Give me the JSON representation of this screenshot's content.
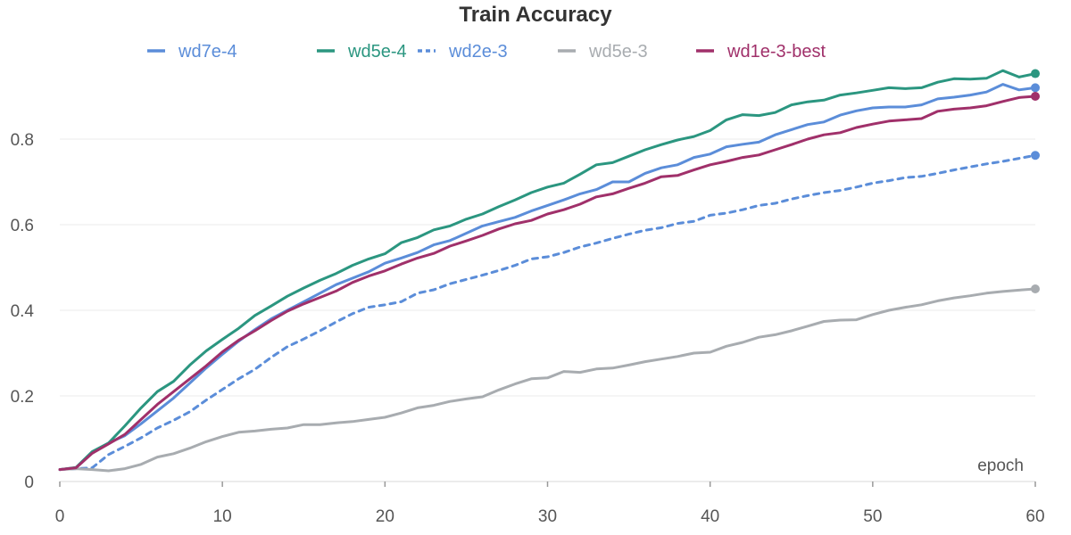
{
  "chart_data": {
    "type": "line",
    "title": "Train Accuracy",
    "xlabel": "epoch",
    "ylabel": "",
    "xlim": [
      0,
      60
    ],
    "ylim": [
      0,
      1.0
    ],
    "x_ticks": [
      0,
      10,
      20,
      30,
      40,
      50,
      60
    ],
    "y_ticks": [
      0,
      0.2,
      0.4,
      0.6,
      0.8
    ],
    "x_tick_labels": [
      "0",
      "10",
      "20",
      "30",
      "40",
      "50",
      "60"
    ],
    "y_tick_labels": [
      "0",
      "0.2",
      "0.4",
      "0.6",
      "0.8"
    ],
    "grid": true,
    "legend_position": "top",
    "series": [
      {
        "name": "wd7e-4",
        "color": "#5b8dd9",
        "dash": "solid",
        "values": [
          0.028,
          0.032,
          0.068,
          0.09,
          0.107,
          0.135,
          0.165,
          0.195,
          0.23,
          0.265,
          0.297,
          0.328,
          0.355,
          0.38,
          0.4,
          0.42,
          0.44,
          0.46,
          0.475,
          0.49,
          0.51,
          0.522,
          0.535,
          0.553,
          0.563,
          0.58,
          0.597,
          0.607,
          0.617,
          0.632,
          0.645,
          0.658,
          0.672,
          0.682,
          0.7,
          0.7,
          0.72,
          0.733,
          0.74,
          0.757,
          0.765,
          0.782,
          0.788,
          0.793,
          0.81,
          0.822,
          0.834,
          0.84,
          0.856,
          0.866,
          0.873,
          0.875,
          0.875,
          0.88,
          0.894,
          0.898,
          0.903,
          0.91,
          0.928,
          0.915,
          0.92
        ]
      },
      {
        "name": "wd5e-4",
        "color": "#2b9680",
        "dash": "solid",
        "values": [
          0.028,
          0.033,
          0.07,
          0.09,
          0.13,
          0.172,
          0.21,
          0.234,
          0.272,
          0.305,
          0.332,
          0.358,
          0.388,
          0.41,
          0.433,
          0.452,
          0.47,
          0.486,
          0.505,
          0.52,
          0.532,
          0.558,
          0.57,
          0.588,
          0.597,
          0.613,
          0.625,
          0.642,
          0.658,
          0.675,
          0.688,
          0.697,
          0.718,
          0.74,
          0.745,
          0.76,
          0.775,
          0.787,
          0.798,
          0.806,
          0.82,
          0.845,
          0.857,
          0.855,
          0.862,
          0.88,
          0.887,
          0.891,
          0.903,
          0.908,
          0.914,
          0.92,
          0.918,
          0.92,
          0.933,
          0.941,
          0.94,
          0.942,
          0.96,
          0.945,
          0.953
        ]
      },
      {
        "name": "wd2e-3",
        "color": "#5b8dd9",
        "dash": "dashed",
        "values": [
          0.028,
          0.03,
          0.032,
          0.063,
          0.082,
          0.102,
          0.125,
          0.143,
          0.163,
          0.19,
          0.215,
          0.24,
          0.262,
          0.29,
          0.315,
          0.333,
          0.352,
          0.373,
          0.392,
          0.407,
          0.413,
          0.42,
          0.44,
          0.448,
          0.462,
          0.472,
          0.482,
          0.493,
          0.505,
          0.52,
          0.525,
          0.535,
          0.548,
          0.557,
          0.568,
          0.578,
          0.587,
          0.593,
          0.603,
          0.608,
          0.622,
          0.627,
          0.635,
          0.645,
          0.65,
          0.66,
          0.668,
          0.675,
          0.68,
          0.688,
          0.697,
          0.703,
          0.71,
          0.713,
          0.72,
          0.728,
          0.735,
          0.742,
          0.748,
          0.755,
          0.762
        ]
      },
      {
        "name": "wd5e-3",
        "color": "#a8acb0",
        "dash": "solid",
        "values": [
          0.028,
          0.03,
          0.028,
          0.025,
          0.03,
          0.04,
          0.057,
          0.065,
          0.078,
          0.093,
          0.105,
          0.115,
          0.118,
          0.122,
          0.125,
          0.133,
          0.133,
          0.137,
          0.14,
          0.145,
          0.15,
          0.16,
          0.172,
          0.178,
          0.187,
          0.193,
          0.198,
          0.214,
          0.228,
          0.24,
          0.242,
          0.257,
          0.255,
          0.263,
          0.265,
          0.272,
          0.28,
          0.286,
          0.292,
          0.3,
          0.302,
          0.316,
          0.325,
          0.337,
          0.343,
          0.352,
          0.363,
          0.374,
          0.377,
          0.378,
          0.39,
          0.4,
          0.407,
          0.413,
          0.422,
          0.429,
          0.434,
          0.44,
          0.444,
          0.447,
          0.45
        ]
      },
      {
        "name": "wd1e-3-best",
        "color": "#a0306a",
        "dash": "solid",
        "values": [
          0.028,
          0.032,
          0.066,
          0.088,
          0.11,
          0.145,
          0.18,
          0.21,
          0.24,
          0.27,
          0.303,
          0.33,
          0.352,
          0.376,
          0.398,
          0.415,
          0.43,
          0.445,
          0.465,
          0.48,
          0.492,
          0.508,
          0.522,
          0.533,
          0.55,
          0.562,
          0.575,
          0.59,
          0.602,
          0.61,
          0.625,
          0.635,
          0.648,
          0.665,
          0.672,
          0.685,
          0.697,
          0.712,
          0.715,
          0.728,
          0.74,
          0.748,
          0.757,
          0.763,
          0.775,
          0.787,
          0.8,
          0.81,
          0.815,
          0.827,
          0.835,
          0.842,
          0.845,
          0.848,
          0.865,
          0.87,
          0.873,
          0.878,
          0.888,
          0.897,
          0.9
        ]
      }
    ]
  }
}
